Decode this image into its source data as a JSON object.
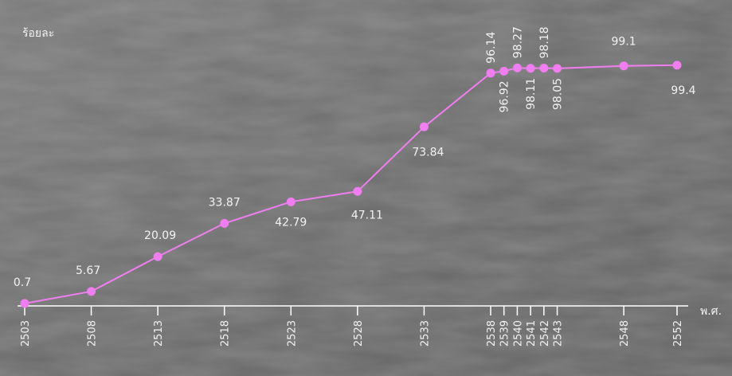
{
  "chart_data": {
    "type": "line",
    "ylabel": "ร้อยละ",
    "xlabel": "พ.ศ.",
    "x": [
      2503,
      2508,
      2513,
      2518,
      2523,
      2528,
      2533,
      2538,
      2539,
      2540,
      2541,
      2542,
      2543,
      2548,
      2552
    ],
    "tick_labels": [
      "2503",
      "2508",
      "2513",
      "2518",
      "2523",
      "2528",
      "2533",
      "2538",
      "2539",
      "2540",
      "2541",
      "2542",
      "2543",
      "2548",
      "2552"
    ],
    "values": [
      0.7,
      5.67,
      20.09,
      33.87,
      42.79,
      47.11,
      73.84,
      96.14,
      96.92,
      98.27,
      98.11,
      98.18,
      98.05,
      99.1,
      99.4
    ],
    "value_labels": [
      "0.7",
      "5.67",
      "20.09",
      "33.87",
      "42.79",
      "47.11",
      "73.84",
      "96.14",
      "96.92",
      "98.27",
      "98.11",
      "98.18",
      "98.05",
      "99.1",
      "99.4"
    ],
    "ylim": [
      0,
      100
    ],
    "grid": false,
    "legend": "none",
    "line_color": "#f07ef0",
    "axis_color": "#ffffff",
    "background_color": "#6f6f6f"
  }
}
